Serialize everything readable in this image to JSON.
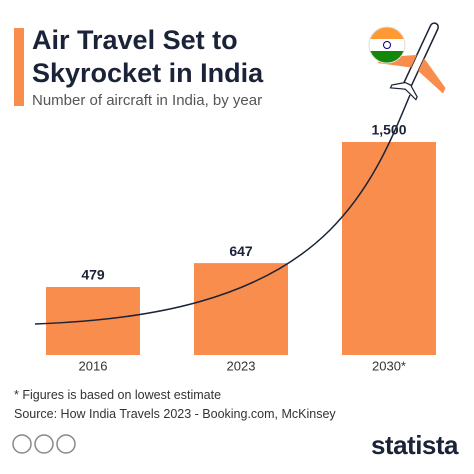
{
  "chart_data": {
    "type": "bar",
    "title": "Air Travel Set to Skyrocket in India",
    "subtitle": "Number of aircraft in India, by year",
    "categories": [
      "2016",
      "2023",
      "2030*"
    ],
    "values": [
      479,
      647,
      1500
    ],
    "value_labels": [
      "479",
      "647",
      "1,500"
    ],
    "color": "#f98d4d",
    "note": "* Figures is based on lowest estimate",
    "source": "Source: How India Travels 2023 - Booking.com, McKinsey",
    "brand": "statista"
  }
}
